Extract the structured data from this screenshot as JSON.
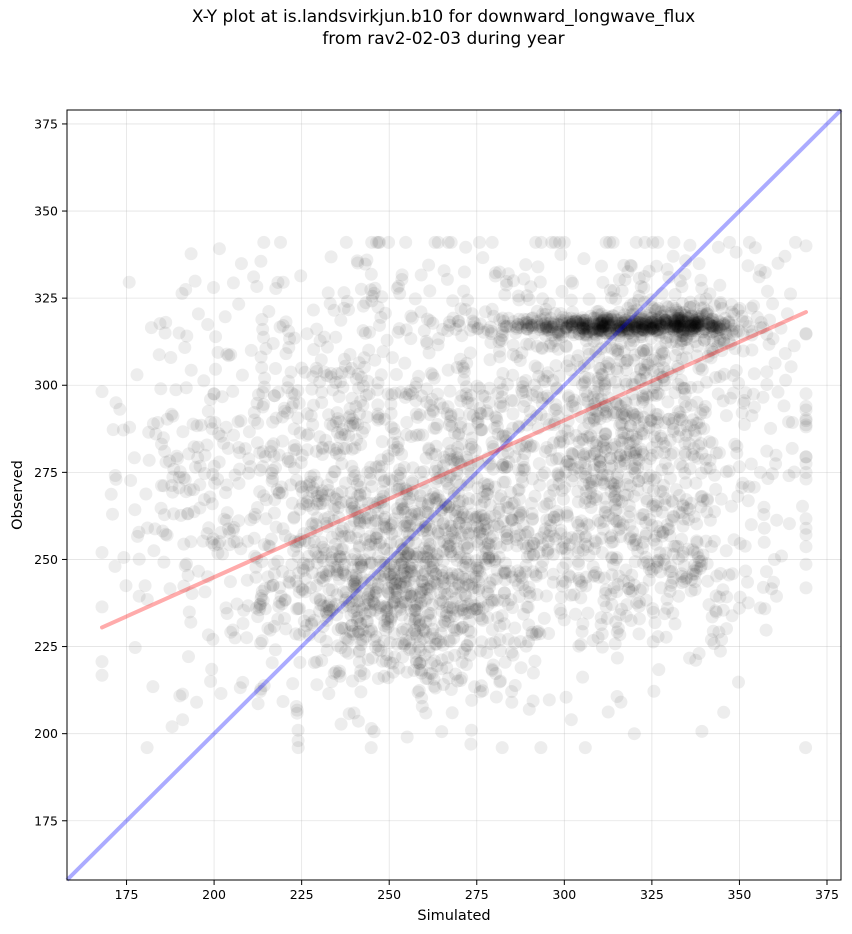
{
  "figure": {
    "title_line1": "X-Y plot at is.landsvirkjun.b10 for downward_longwave_flux",
    "title_line2": "from rav2-02-03 during year"
  },
  "chart_data": {
    "type": "scatter",
    "xlabel": "Simulated",
    "ylabel": "Observed",
    "xlim": [
      158,
      379
    ],
    "ylim": [
      158,
      379
    ],
    "xticks": [
      175,
      200,
      225,
      250,
      275,
      300,
      325,
      350,
      375
    ],
    "yticks": [
      175,
      200,
      225,
      250,
      275,
      300,
      325,
      350,
      375
    ],
    "grid": true,
    "point_color": "#000000",
    "point_alpha": 0.07,
    "one_to_one_line": {
      "x": [
        158,
        379
      ],
      "y": [
        158,
        379
      ],
      "color": "#0000ff"
    },
    "regression_line": {
      "x": [
        168,
        369
      ],
      "y": [
        230.5,
        321
      ],
      "color": "#ff0000"
    },
    "clusters": [
      {
        "cx": 255,
        "cy": 243,
        "sx": 20,
        "sy": 16,
        "n": 900
      },
      {
        "cx": 290,
        "cy": 280,
        "sx": 38,
        "sy": 30,
        "n": 1200
      },
      {
        "cx": 230,
        "cy": 285,
        "sx": 25,
        "sy": 28,
        "n": 350
      },
      {
        "cx": 320,
        "cy": 290,
        "sx": 18,
        "sy": 22,
        "n": 450
      },
      {
        "cx": 315,
        "cy": 317,
        "sx": 18,
        "sy": 1.2,
        "n": 450
      },
      {
        "cx": 335,
        "cy": 318,
        "sx": 9,
        "sy": 3,
        "n": 200
      },
      {
        "cx": 195,
        "cy": 262,
        "sx": 10,
        "sy": 28,
        "n": 120
      },
      {
        "cx": 330,
        "cy": 245,
        "sx": 15,
        "sy": 10,
        "n": 120
      }
    ],
    "outliers": [
      {
        "x": 168,
        "y": 252
      },
      {
        "x": 171,
        "y": 263
      },
      {
        "x": 172,
        "y": 273
      },
      {
        "x": 172,
        "y": 295
      },
      {
        "x": 178,
        "y": 303
      },
      {
        "x": 186,
        "y": 315
      },
      {
        "x": 190,
        "y": 315
      },
      {
        "x": 188,
        "y": 202
      },
      {
        "x": 191,
        "y": 204
      },
      {
        "x": 195,
        "y": 209
      },
      {
        "x": 199,
        "y": 215
      },
      {
        "x": 224,
        "y": 198
      },
      {
        "x": 224,
        "y": 201
      },
      {
        "x": 268,
        "y": 206
      },
      {
        "x": 276,
        "y": 212
      },
      {
        "x": 285,
        "y": 209
      },
      {
        "x": 290,
        "y": 207
      },
      {
        "x": 302,
        "y": 204
      },
      {
        "x": 306,
        "y": 196
      },
      {
        "x": 300,
        "y": 341
      },
      {
        "x": 366,
        "y": 341
      },
      {
        "x": 369,
        "y": 340
      },
      {
        "x": 361,
        "y": 335
      },
      {
        "x": 363,
        "y": 337
      },
      {
        "x": 356,
        "y": 333
      },
      {
        "x": 358,
        "y": 327
      },
      {
        "x": 360,
        "y": 250
      },
      {
        "x": 362,
        "y": 251
      },
      {
        "x": 357,
        "y": 265
      },
      {
        "x": 356,
        "y": 275
      },
      {
        "x": 350,
        "y": 236
      },
      {
        "x": 342,
        "y": 227
      },
      {
        "x": 284,
        "y": 332
      },
      {
        "x": 283,
        "y": 326
      }
    ]
  }
}
